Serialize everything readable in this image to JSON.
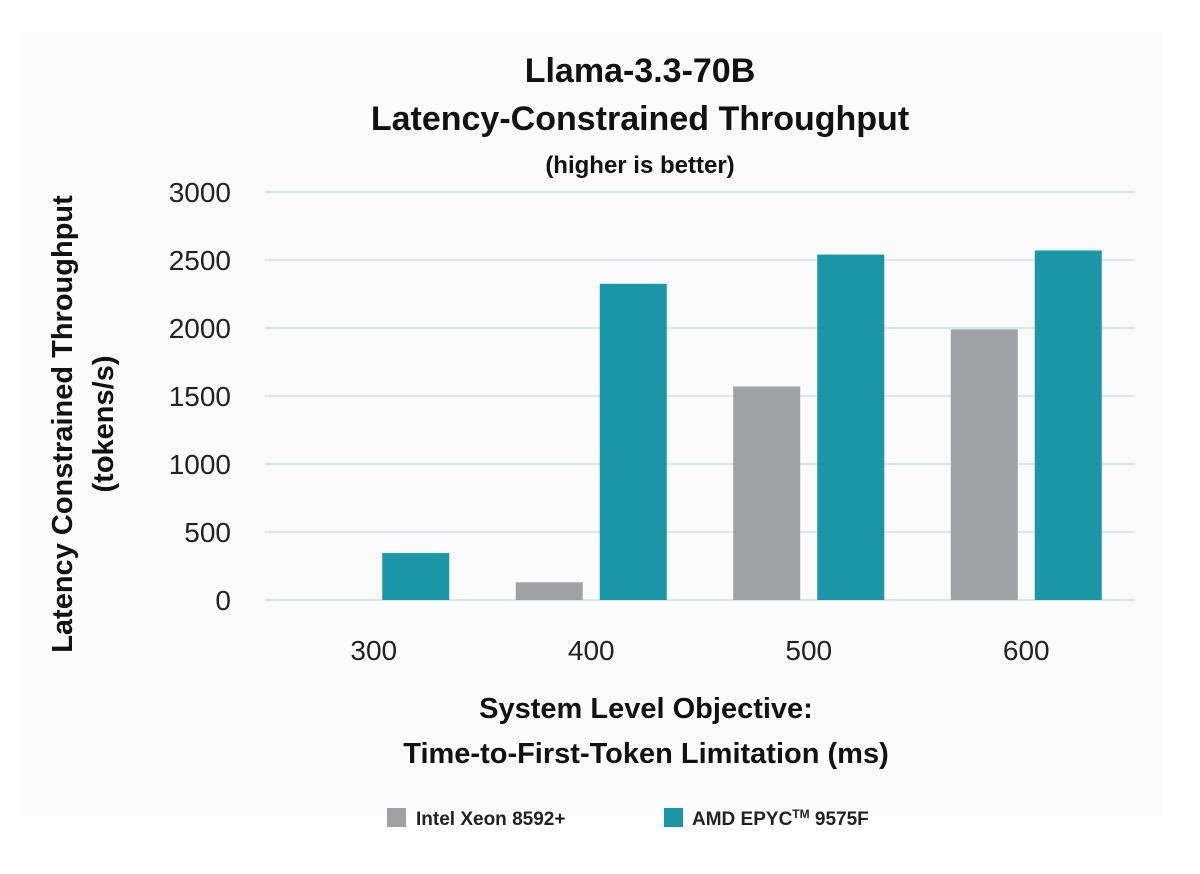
{
  "chart_data": {
    "type": "bar",
    "title": "Llama-3.3-70B",
    "subtitle": "Latency-Constrained Throughput",
    "note": "(higher is better)",
    "categories": [
      "300",
      "400",
      "500",
      "600"
    ],
    "series": [
      {
        "name": "Intel Xeon 8592+",
        "color": "#9fa1a4",
        "values": [
          0,
          130,
          1570,
          1990
        ]
      },
      {
        "name": "AMD EPYC",
        "name_sup": "TM",
        "name_suffix": " 9575F",
        "color": "#1a96a6",
        "values": [
          345,
          2325,
          2540,
          2570
        ]
      }
    ],
    "xlabel_line1": "System Level Objective:",
    "xlabel_line2": "Time-to-First-Token Limitation (ms)",
    "ylabel_line1": "Latency Constrained Throughput",
    "ylabel_line2": "(tokens/s)",
    "ylim": [
      0,
      3000
    ],
    "yticks": [
      0,
      500,
      1000,
      1500,
      2000,
      2500,
      3000
    ],
    "grid": true,
    "gridline_color": "#cfe0ee",
    "legend_position": "bottom-center"
  }
}
